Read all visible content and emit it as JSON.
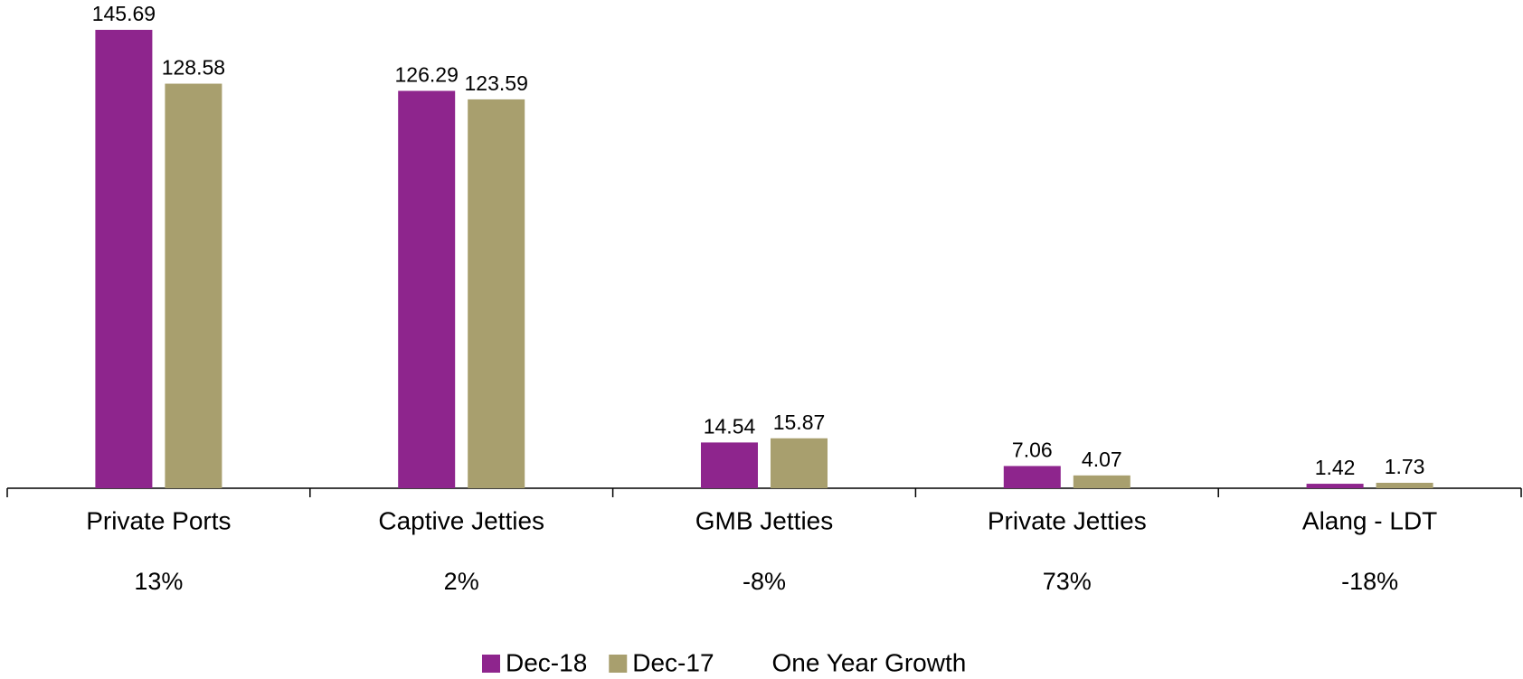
{
  "chart_data": {
    "type": "bar",
    "categories": [
      "Private Ports",
      "Captive Jetties",
      "GMB Jetties",
      "Private Jetties",
      "Alang - LDT"
    ],
    "series": [
      {
        "name": "Dec-18",
        "color": "#8e258d",
        "values": [
          145.69,
          126.29,
          14.54,
          7.06,
          1.42
        ]
      },
      {
        "name": "Dec-17",
        "color": "#a89f6e",
        "values": [
          128.58,
          123.59,
          15.87,
          4.07,
          1.73
        ]
      },
      {
        "name": "One Year Growth",
        "values": [
          13,
          2,
          -8,
          73,
          -18
        ],
        "value_labels": [
          "13%",
          "2%",
          "-8%",
          "73%",
          "-18%"
        ]
      }
    ],
    "grid": false
  }
}
